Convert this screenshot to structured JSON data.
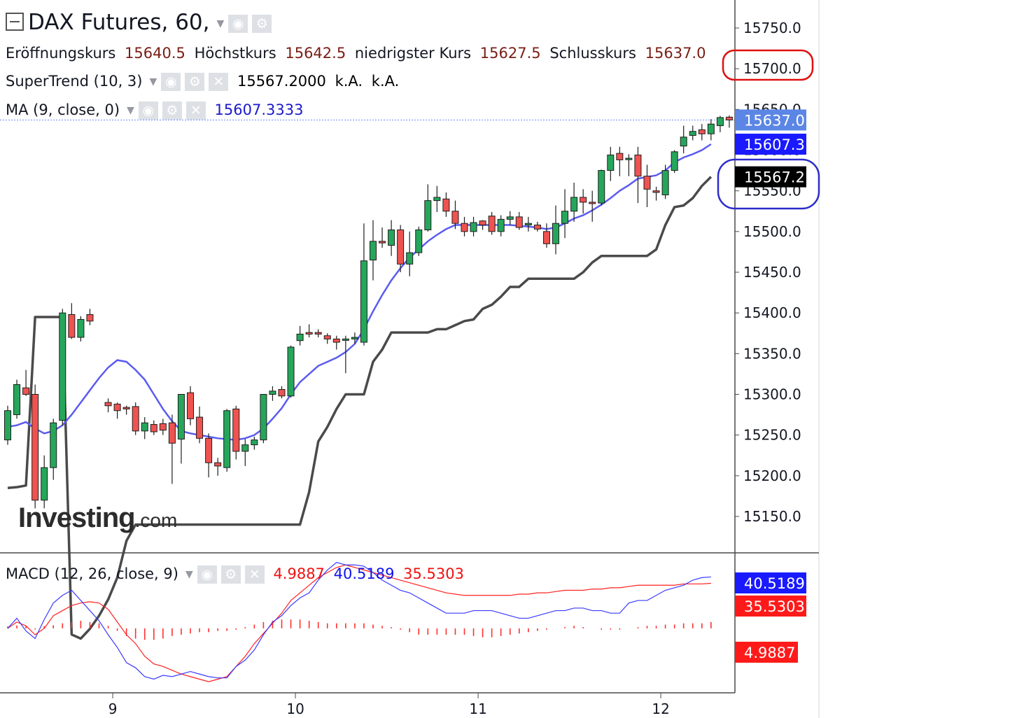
{
  "legend": {
    "symbol": "DAX Futures, 60,",
    "open_label": "Eröffnungskurs",
    "open_value": "15640.5",
    "high_label": "Höchstkurs",
    "high_value": "15642.5",
    "low_label": "niedrigster Kurs",
    "low_value": "15627.5",
    "close_label": "Schlusskurs",
    "close_value": "15637.0",
    "supertrend_label": "SuperTrend (10, 3)",
    "supertrend_value": "15567.2000",
    "supertrend_na1": "k.A.",
    "supertrend_na2": "k.A.",
    "ma_label": "MA (9, close, 0)",
    "ma_value": "15607.3333",
    "macd_label": "MACD (12, 26, close, 9)",
    "macd_hist_value": "4.9887",
    "macd_value": "40.5189",
    "macd_signal_value": "35.5303"
  },
  "watermark": {
    "brand": "Investing",
    "domain": ".com"
  },
  "colors": {
    "up": "#26a65b",
    "down": "#ef5350",
    "ma": "#5b5bf0",
    "supertrend": "#4a4a4a",
    "macd": "#3b3bff",
    "signal": "#ff2020",
    "hist": "#ff3030",
    "grid_price": "#2962ff",
    "highlight_red": "#e01010",
    "highlight_blue": "#2c2ccc"
  },
  "chart_data": [
    {
      "type": "candlestick",
      "title": "DAX Futures, 60,",
      "ylim": [
        15100,
        15790
      ],
      "y_ticks": [
        "15750.0",
        "15700.0",
        "15650.0",
        "15600.0",
        "15550.0",
        "15500.0",
        "15450.0",
        "15400.0",
        "15350.0",
        "15300.0",
        "15250.0",
        "15200.0",
        "15150.0"
      ],
      "x_ticks": [
        {
          "label": "9",
          "bar": 11.5
        },
        {
          "label": "10",
          "bar": 31.5
        },
        {
          "label": "11",
          "bar": 51.5
        },
        {
          "label": "12",
          "bar": 71.5
        }
      ],
      "price_tags": [
        {
          "label": "15637.0",
          "value": 15637,
          "color": "#5b86e5"
        },
        {
          "label": "15607.3",
          "value": 15607.3,
          "color": "#1a1aff"
        },
        {
          "label": "15567.2",
          "value": 15567.2,
          "color": "#000000"
        }
      ],
      "annotations": [
        {
          "type": "circle",
          "around": "15700.0",
          "color": "red"
        },
        {
          "type": "circle",
          "around": "15567.2",
          "color": "blue"
        }
      ],
      "candles": [
        [
          15244,
          15286,
          15238,
          15280
        ],
        [
          15275,
          15318,
          15270,
          15312
        ],
        [
          15308,
          15330,
          15298,
          15300
        ],
        [
          15300,
          15312,
          15160,
          15170
        ],
        [
          15170,
          15225,
          15160,
          15210
        ],
        [
          15210,
          15270,
          15195,
          15265
        ],
        [
          15268,
          15405,
          15262,
          15400
        ],
        [
          15398,
          15412,
          15368,
          15370
        ],
        [
          15370,
          15396,
          15365,
          15392
        ],
        [
          15398,
          15405,
          15385,
          15390
        ],
        null,
        [
          15290,
          15295,
          15278,
          15286
        ],
        [
          15288,
          15290,
          15270,
          15280
        ],
        [
          15284,
          15286,
          15275,
          15282
        ],
        [
          15285,
          15290,
          15250,
          15255
        ],
        [
          15255,
          15272,
          15245,
          15265
        ],
        [
          15263,
          15268,
          15250,
          15254
        ],
        [
          15264,
          15270,
          15250,
          15256
        ],
        [
          15265,
          15275,
          15190,
          15240
        ],
        [
          15245,
          15300,
          15215,
          15300
        ],
        [
          15302,
          15310,
          15262,
          15270
        ],
        [
          15272,
          15285,
          15240,
          15246
        ],
        [
          15246,
          15252,
          15198,
          15216
        ],
        [
          15216,
          15222,
          15200,
          15212
        ],
        [
          15210,
          15282,
          15205,
          15280
        ],
        [
          15282,
          15286,
          15220,
          15230
        ],
        [
          15230,
          15245,
          15212,
          15238
        ],
        [
          15238,
          15248,
          15232,
          15244
        ],
        [
          15244,
          15300,
          15240,
          15300
        ],
        [
          15300,
          15310,
          15292,
          15304
        ],
        [
          15306,
          15310,
          15295,
          15298
        ],
        [
          15298,
          15360,
          15296,
          15358
        ],
        [
          15366,
          15384,
          15360,
          15374
        ],
        [
          15376,
          15386,
          15370,
          15374
        ],
        [
          15376,
          15380,
          15370,
          15374
        ],
        [
          15372,
          15375,
          15362,
          15368
        ],
        [
          15368,
          15372,
          15355,
          15364
        ],
        [
          15368,
          15372,
          15326,
          15368
        ],
        [
          15368,
          15376,
          15362,
          15370
        ],
        [
          15364,
          15510,
          15360,
          15464
        ],
        [
          15465,
          15514,
          15440,
          15488
        ],
        [
          15488,
          15505,
          15480,
          15486
        ],
        [
          15483,
          15514,
          15470,
          15502
        ],
        [
          15502,
          15508,
          15450,
          15460
        ],
        [
          15460,
          15500,
          15445,
          15474
        ],
        [
          15474,
          15506,
          15470,
          15502
        ],
        [
          15502,
          15558,
          15500,
          15538
        ],
        [
          15538,
          15556,
          15524,
          15542
        ],
        [
          15540,
          15548,
          15518,
          15525
        ],
        [
          15525,
          15538,
          15503,
          15510
        ],
        [
          15510,
          15518,
          15494,
          15500
        ],
        [
          15500,
          15518,
          15494,
          15511
        ],
        [
          15513,
          15514,
          15502,
          15508
        ],
        [
          15519,
          15524,
          15496,
          15500
        ],
        [
          15500,
          15520,
          15494,
          15515
        ],
        [
          15515,
          15525,
          15508,
          15518
        ],
        [
          15518,
          15524,
          15502,
          15505
        ],
        [
          15508,
          15518,
          15500,
          15510
        ],
        [
          15508,
          15512,
          15500,
          15503
        ],
        [
          15500,
          15510,
          15480,
          15485
        ],
        [
          15485,
          15532,
          15472,
          15510
        ],
        [
          15510,
          15552,
          15492,
          15525
        ],
        [
          15525,
          15560,
          15512,
          15542
        ],
        [
          15542,
          15552,
          15522,
          15536
        ],
        [
          15536,
          15550,
          15512,
          15535
        ],
        [
          15535,
          15576,
          15532,
          15575
        ],
        [
          15575,
          15604,
          15562,
          15594
        ],
        [
          15596,
          15604,
          15568,
          15588
        ],
        [
          15590,
          15595,
          15568,
          15590
        ],
        [
          15594,
          15604,
          15535,
          15568
        ],
        [
          15568,
          15582,
          15530,
          15552
        ],
        [
          15550,
          15555,
          15538,
          15548
        ],
        [
          15545,
          15582,
          15540,
          15575
        ],
        [
          15575,
          15600,
          15572,
          15598
        ],
        [
          15605,
          15630,
          15596,
          15616
        ],
        [
          15618,
          15630,
          15612,
          15623
        ],
        [
          15625,
          15632,
          15612,
          15620
        ],
        [
          15620,
          15638,
          15612,
          15632
        ],
        [
          15630,
          15642,
          15622,
          15640
        ],
        [
          15640.5,
          15642.5,
          15627.5,
          15637
        ]
      ],
      "ma": [
        15260,
        15262,
        15266,
        15258,
        15252,
        15255,
        15262,
        15275,
        15290,
        15305,
        15320,
        15333,
        15342,
        15340,
        15330,
        15318,
        15300,
        15282,
        15267,
        15255,
        15252,
        15250,
        15248,
        15246,
        15245,
        15244,
        15246,
        15250,
        15258,
        15270,
        15283,
        15300,
        15315,
        15325,
        15335,
        15340,
        15345,
        15352,
        15362,
        15380,
        15402,
        15422,
        15440,
        15455,
        15468,
        15478,
        15488,
        15496,
        15503,
        15508,
        15508,
        15508,
        15508,
        15508,
        15508,
        15508,
        15507,
        15506,
        15505,
        15503,
        15505,
        15510,
        15516,
        15520,
        15526,
        15533,
        15541,
        15550,
        15557,
        15565,
        15567,
        15569,
        15575,
        15585,
        15591,
        15595,
        15600,
        15607.3
      ],
      "supertrend": [
        15185,
        15186,
        15188,
        15395,
        15395,
        15395,
        15395,
        15005,
        15000,
        15012,
        15028,
        15048,
        15075,
        15120,
        15140,
        15140,
        15140,
        15140,
        15140,
        15140,
        15140,
        15140,
        15140,
        15140,
        15140,
        15140,
        15140,
        15140,
        15140,
        15140,
        15140,
        15140,
        15140,
        15180,
        15242,
        15260,
        15282,
        15300,
        15300,
        15300,
        15340,
        15355,
        15376,
        15376,
        15376,
        15376,
        15376,
        15380,
        15380,
        15385,
        15390,
        15392,
        15405,
        15410,
        15420,
        15432,
        15432,
        15442,
        15442,
        15442,
        15442,
        15442,
        15442,
        15450,
        15462,
        15470,
        15470,
        15470,
        15470,
        15470,
        15470,
        15478,
        15508,
        15530,
        15532,
        15541,
        15556,
        15567.2
      ]
    },
    {
      "type": "macd",
      "title": "MACD (12, 26, close, 9)",
      "ylim": [
        -48,
        54
      ],
      "price_tags": [
        {
          "label": "40.5189",
          "value": 40.5189,
          "color": "#1a1aff"
        },
        {
          "label": "35.5303",
          "value": 35.5303,
          "color": "#ff1a1a"
        },
        {
          "label": "4.9887",
          "value": 4.9887,
          "color": "#ff1a1a"
        }
      ],
      "macd": [
        0,
        8,
        -2,
        -8,
        7,
        20,
        26,
        30,
        22,
        14,
        6,
        -5,
        -15,
        -27,
        -31,
        -38,
        -40,
        -37,
        -38,
        -36,
        -34,
        -36,
        -38,
        -39,
        -39,
        -30,
        -25,
        -17,
        -5,
        5,
        10,
        18,
        24,
        28,
        38,
        46,
        52,
        50,
        50,
        49,
        44,
        38,
        34,
        30,
        28,
        24,
        20,
        16,
        12,
        12,
        12,
        14,
        14,
        14,
        12,
        10,
        8,
        8,
        10,
        12,
        14,
        14,
        16,
        16,
        14,
        14,
        12,
        12,
        20,
        22,
        22,
        26,
        30,
        32,
        34,
        38,
        40,
        40.5189
      ],
      "signal": [
        0,
        5,
        2,
        -5,
        0,
        10,
        14,
        18,
        20,
        21,
        20,
        15,
        5,
        -5,
        -12,
        -22,
        -28,
        -30,
        -33,
        -36,
        -38,
        -40,
        -42,
        -40,
        -38,
        -30,
        -22,
        -12,
        -4,
        4,
        12,
        22,
        28,
        34,
        40,
        44,
        48,
        50,
        48,
        46,
        44,
        42,
        40,
        38,
        36,
        34,
        32,
        30,
        28,
        27,
        26,
        26,
        26,
        26,
        26,
        26,
        27,
        27,
        28,
        28,
        29,
        30,
        30,
        30,
        31,
        31,
        32,
        32,
        33,
        34,
        34,
        34,
        34,
        34,
        35,
        35,
        35,
        35.5303
      ],
      "hist": [
        1.5,
        2.3,
        1.6,
        -0.8,
        1.8,
        2.5,
        4,
        5,
        6,
        5,
        4,
        2,
        -2,
        -6,
        -8,
        -9,
        -9,
        -8,
        -6,
        -5,
        -4,
        -3,
        -3,
        -2,
        -2,
        -1,
        1,
        3,
        5,
        6,
        7,
        7,
        7,
        6,
        5,
        4,
        4,
        4,
        4,
        4,
        3,
        2,
        1,
        -1,
        -3,
        -5,
        -5,
        -5,
        -5,
        -5,
        -5,
        -6,
        -7,
        -7,
        -6,
        -5,
        -4,
        -3,
        -2,
        -1,
        0,
        1,
        2,
        1,
        0,
        -1,
        -1,
        -1,
        0,
        1,
        2,
        2,
        3,
        3,
        4,
        4,
        4,
        4.9887
      ]
    }
  ]
}
